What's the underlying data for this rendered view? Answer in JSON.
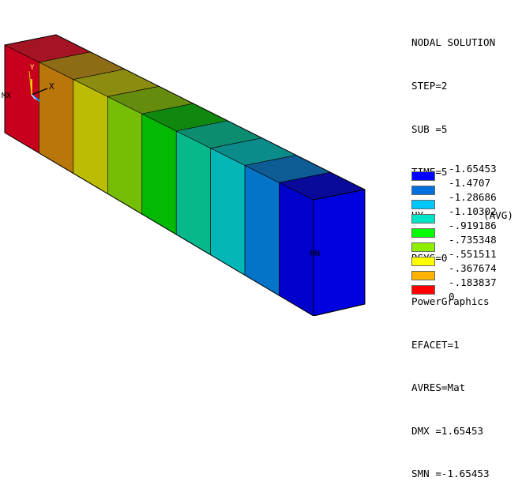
{
  "info": {
    "lines": [
      "NODAL SOLUTION",
      "STEP=2",
      "SUB =5",
      "TIME=5",
      "UY          (AVG)",
      "RSYS=0",
      "PowerGraphics",
      "EFACET=1",
      "AVRES=Mat",
      "DMX =1.65453",
      "SMN =-1.65453"
    ]
  },
  "legend": {
    "values": [
      "-1.65453",
      "-1.4707",
      "-1.28686",
      "-1.10302",
      "-.919186",
      "-.735348",
      "-.551511",
      "-.367674",
      "-.183837",
      "0"
    ],
    "colors": [
      "#0000ff",
      "#0070e0",
      "#00c8ff",
      "#00e5c8",
      "#00ff00",
      "#90ee00",
      "#ffff00",
      "#ffb300",
      "#ff0000"
    ]
  },
  "model": {
    "front_colors": [
      "#c8001e",
      "#b9760a",
      "#bcbc04",
      "#76bd06",
      "#04b804",
      "#06b88a",
      "#04b7b7",
      "#0474c8",
      "#0000cd"
    ],
    "top_colors": [
      "#a51422",
      "#8e6c16",
      "#8c8c10",
      "#668c0e",
      "#10880f",
      "#0d8d70",
      "#0c8b8b",
      "#0e5c94",
      "#0a0a9a"
    ],
    "end_face_color": "#0000e0"
  },
  "triad": {
    "x_label": "X",
    "y_label": "Y"
  },
  "labels": {
    "mx": "MX",
    "mn": "MN"
  }
}
